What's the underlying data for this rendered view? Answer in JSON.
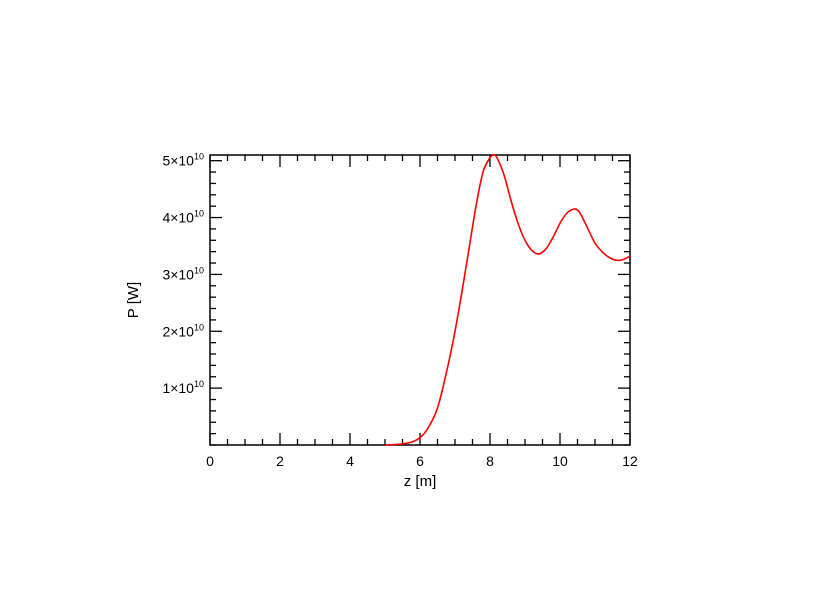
{
  "chart_data": {
    "type": "line",
    "title": "",
    "xlabel": "z [m]",
    "ylabel": "P [W]",
    "xlim": [
      0,
      12
    ],
    "ylim": [
      0,
      51000000000.0
    ],
    "grid": false,
    "x_ticks": [
      {
        "value": 0,
        "label": "0"
      },
      {
        "value": 2,
        "label": "2"
      },
      {
        "value": 4,
        "label": "4"
      },
      {
        "value": 6,
        "label": "6"
      },
      {
        "value": 8,
        "label": "8"
      },
      {
        "value": 10,
        "label": "10"
      },
      {
        "value": 12,
        "label": "12"
      }
    ],
    "y_ticks": [
      {
        "value": 10000000000.0,
        "mantissa": "1",
        "base": "×10",
        "exp": "10"
      },
      {
        "value": 20000000000.0,
        "mantissa": "2",
        "base": "×10",
        "exp": "10"
      },
      {
        "value": 30000000000.0,
        "mantissa": "3",
        "base": "×10",
        "exp": "10"
      },
      {
        "value": 40000000000.0,
        "mantissa": "4",
        "base": "×10",
        "exp": "10"
      },
      {
        "value": 50000000000.0,
        "mantissa": "5",
        "base": "×10",
        "exp": "10"
      }
    ],
    "series": [
      {
        "color": "#ff0000",
        "x": [
          5.0,
          5.5,
          5.8,
          6.0,
          6.2,
          6.5,
          6.8,
          7.0,
          7.2,
          7.4,
          7.6,
          7.8,
          8.0,
          8.1,
          8.2,
          8.4,
          8.6,
          8.8,
          9.0,
          9.2,
          9.4,
          9.6,
          9.8,
          10.0,
          10.2,
          10.4,
          10.5,
          10.6,
          10.8,
          11.0,
          11.2,
          11.4,
          11.6,
          11.8,
          12.0
        ],
        "y": [
          0.0,
          200000000.0,
          600000000.0,
          1300000000.0,
          2700000000.0,
          6500000000.0,
          14000000000.0,
          20000000000.0,
          27000000000.0,
          34500000000.0,
          42000000000.0,
          48000000000.0,
          50500000000.0,
          51000000000.0,
          50500000000.0,
          47500000000.0,
          43000000000.0,
          39000000000.0,
          36000000000.0,
          34200000000.0,
          33600000000.0,
          34500000000.0,
          36500000000.0,
          39000000000.0,
          40800000000.0,
          41500000000.0,
          41300000000.0,
          40500000000.0,
          38000000000.0,
          35500000000.0,
          34000000000.0,
          33000000000.0,
          32500000000.0,
          32600000000.0,
          33200000000.0
        ]
      }
    ]
  }
}
